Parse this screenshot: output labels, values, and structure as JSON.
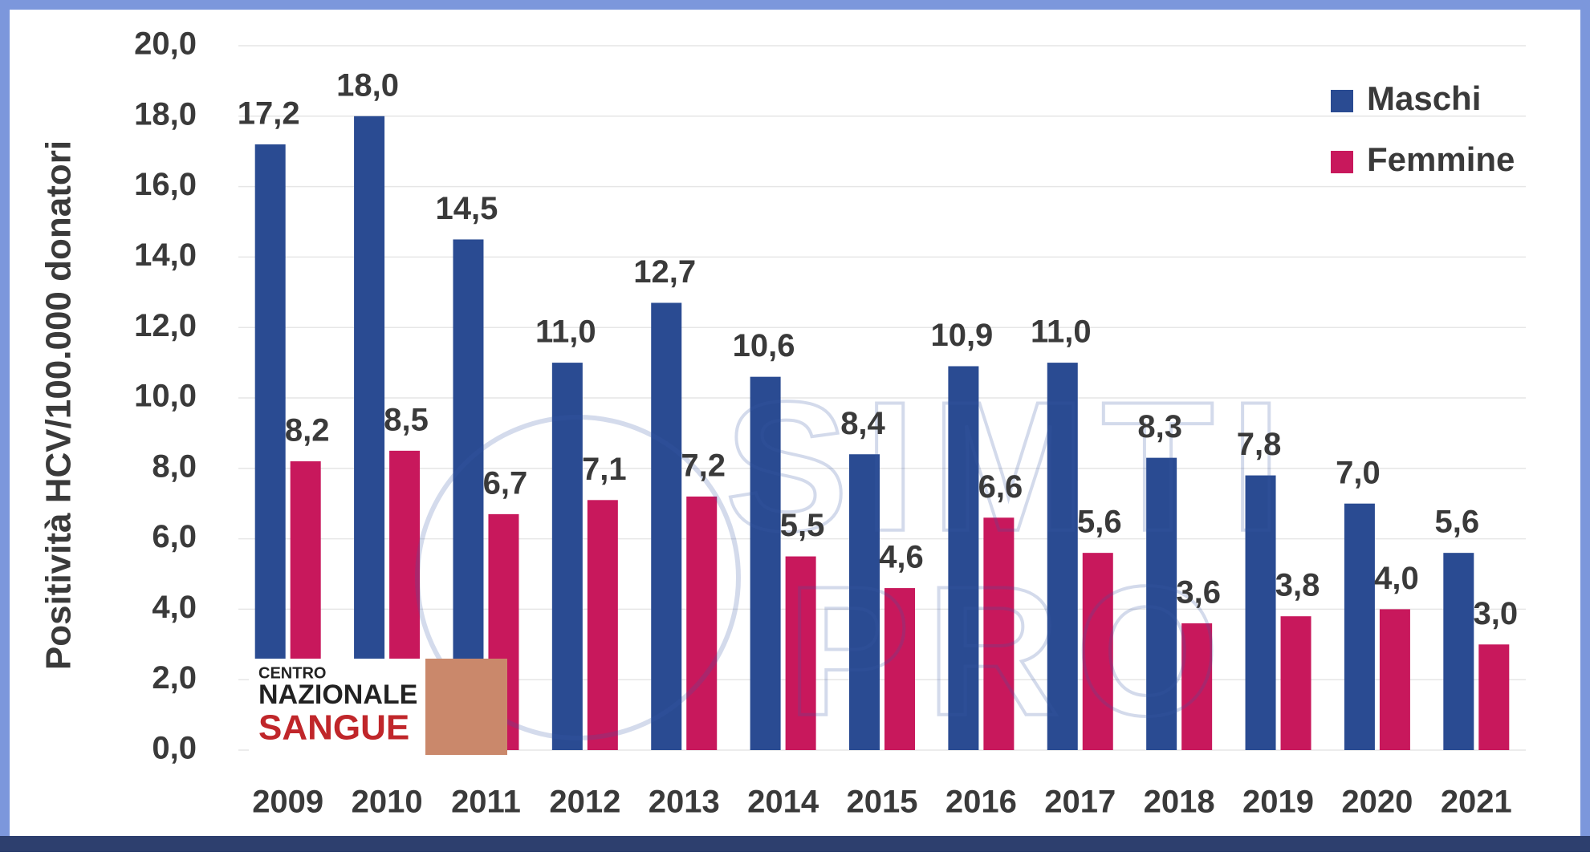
{
  "chart_data": {
    "type": "bar",
    "y_label": "Positività HCV/100.000 donatori",
    "categories": [
      "2009",
      "2010",
      "2011",
      "2012",
      "2013",
      "2014",
      "2015",
      "2016",
      "2017",
      "2018",
      "2019",
      "2020",
      "2021"
    ],
    "series": [
      {
        "name": "Maschi",
        "color": "#2a4b92",
        "values": [
          17.2,
          18.0,
          14.5,
          11.0,
          12.7,
          10.6,
          8.4,
          10.9,
          11.0,
          8.3,
          7.8,
          7.0,
          5.6
        ],
        "value_labels": [
          "17,2",
          "18,0",
          "14,5",
          "11,0",
          "12,7",
          "10,6",
          "8,4",
          "10,9",
          "11,0",
          "8,3",
          "7,8",
          "7,0",
          "5,6"
        ]
      },
      {
        "name": "Femmine",
        "color": "#c8185c",
        "values": [
          8.2,
          8.5,
          6.7,
          7.1,
          7.2,
          5.5,
          4.6,
          6.6,
          5.6,
          3.6,
          3.8,
          4.0,
          3.0
        ],
        "value_labels": [
          "8,2",
          "8,5",
          "6,7",
          "7,1",
          "7,2",
          "5,5",
          "4,6",
          "6,6",
          "5,6",
          "3,6",
          "3,8",
          "4,0",
          "3,0"
        ]
      }
    ],
    "ylim": [
      0,
      20
    ],
    "yticks": [
      {
        "value": 0,
        "label": "0,0"
      },
      {
        "value": 2,
        "label": "2,0"
      },
      {
        "value": 4,
        "label": "4,0"
      },
      {
        "value": 6,
        "label": "6,0"
      },
      {
        "value": 8,
        "label": "8,0"
      },
      {
        "value": 10,
        "label": "10,0"
      },
      {
        "value": 12,
        "label": "12,0"
      },
      {
        "value": 14,
        "label": "14,0"
      },
      {
        "value": 16,
        "label": "16,0"
      },
      {
        "value": 18,
        "label": "18,0"
      },
      {
        "value": 20,
        "label": "20,0"
      }
    ],
    "grid": true,
    "legend": "top-right",
    "watermark": [
      "SIMTI",
      "PRO"
    ],
    "logo": [
      "CENTRO",
      "NAZIONALE",
      "SANGUE"
    ]
  }
}
